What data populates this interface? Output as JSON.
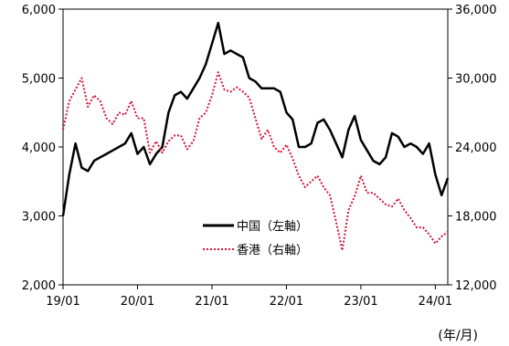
{
  "chart_data": {
    "type": "line",
    "x_unit_label": "(年/月)",
    "x_ticks": [
      "19/01",
      "20/01",
      "21/01",
      "22/01",
      "23/01",
      "24/01"
    ],
    "y_left": {
      "ticks": [
        "2,000",
        "3,000",
        "4,000",
        "5,000",
        "6,000"
      ],
      "range": [
        2000,
        6000
      ]
    },
    "y_right": {
      "ticks": [
        "12,000",
        "18,000",
        "24,000",
        "30,000",
        "36,000"
      ],
      "range": [
        12000,
        36000
      ]
    },
    "x_range": [
      "2019-01",
      "2024-03"
    ],
    "legend_position": "lower-center",
    "grid": false,
    "series": [
      {
        "name": "中国（左軸）",
        "axis": "left",
        "color": "#000000",
        "style": "solid",
        "x": [
          "2019-01",
          "2019-02",
          "2019-03",
          "2019-04",
          "2019-05",
          "2019-06",
          "2019-07",
          "2019-08",
          "2019-09",
          "2019-10",
          "2019-11",
          "2019-12",
          "2020-01",
          "2020-02",
          "2020-03",
          "2020-04",
          "2020-05",
          "2020-06",
          "2020-07",
          "2020-08",
          "2020-09",
          "2020-10",
          "2020-11",
          "2020-12",
          "2021-01",
          "2021-02",
          "2021-03",
          "2021-04",
          "2021-05",
          "2021-06",
          "2021-07",
          "2021-08",
          "2021-09",
          "2021-10",
          "2021-11",
          "2021-12",
          "2022-01",
          "2022-02",
          "2022-03",
          "2022-04",
          "2022-05",
          "2022-06",
          "2022-07",
          "2022-08",
          "2022-09",
          "2022-10",
          "2022-11",
          "2022-12",
          "2023-01",
          "2023-02",
          "2023-03",
          "2023-04",
          "2023-05",
          "2023-06",
          "2023-07",
          "2023-08",
          "2023-09",
          "2023-10",
          "2023-11",
          "2023-12",
          "2024-01",
          "2024-02",
          "2024-03"
        ],
        "values": [
          3000,
          3600,
          4050,
          3700,
          3650,
          3800,
          3850,
          3900,
          3950,
          4000,
          4050,
          4200,
          3900,
          4000,
          3750,
          3900,
          4000,
          4500,
          4750,
          4800,
          4700,
          4850,
          5000,
          5200,
          5500,
          5800,
          5350,
          5400,
          5350,
          5300,
          5000,
          4950,
          4850,
          4850,
          4850,
          4800,
          4500,
          4400,
          4000,
          4000,
          4050,
          4350,
          4400,
          4250,
          4050,
          3850,
          4250,
          4450,
          4100,
          3950,
          3800,
          3750,
          3850,
          4200,
          4150,
          4000,
          4050,
          4000,
          3900,
          4050,
          3600,
          3300,
          3550
        ]
      },
      {
        "name": "香港（右軸）",
        "axis": "right",
        "color": "#d4143a",
        "style": "dotted",
        "x": [
          "2019-01",
          "2019-02",
          "2019-03",
          "2019-04",
          "2019-05",
          "2019-06",
          "2019-07",
          "2019-08",
          "2019-09",
          "2019-10",
          "2019-11",
          "2019-12",
          "2020-01",
          "2020-02",
          "2020-03",
          "2020-04",
          "2020-05",
          "2020-06",
          "2020-07",
          "2020-08",
          "2020-09",
          "2020-10",
          "2020-11",
          "2020-12",
          "2021-01",
          "2021-02",
          "2021-03",
          "2021-04",
          "2021-05",
          "2021-06",
          "2021-07",
          "2021-08",
          "2021-09",
          "2021-10",
          "2021-11",
          "2021-12",
          "2022-01",
          "2022-02",
          "2022-03",
          "2022-04",
          "2022-05",
          "2022-06",
          "2022-07",
          "2022-08",
          "2022-09",
          "2022-10",
          "2022-11",
          "2022-12",
          "2023-01",
          "2023-02",
          "2023-03",
          "2023-04",
          "2023-05",
          "2023-06",
          "2023-07",
          "2023-08",
          "2023-09",
          "2023-10",
          "2023-11",
          "2023-12",
          "2024-01",
          "2024-02",
          "2024-03"
        ],
        "values": [
          25500,
          28000,
          29000,
          30000,
          27500,
          28500,
          28000,
          26500,
          26000,
          27000,
          26800,
          28000,
          26500,
          26500,
          23500,
          24500,
          23500,
          24500,
          25000,
          25000,
          23800,
          24500,
          26500,
          27000,
          28500,
          30500,
          29000,
          28800,
          29200,
          28800,
          28300,
          26500,
          24700,
          25500,
          24000,
          23500,
          24200,
          23000,
          21500,
          20500,
          21000,
          21500,
          20500,
          19800,
          17500,
          15000,
          18500,
          19700,
          21500,
          20000,
          20000,
          19500,
          19000,
          18800,
          19500,
          18500,
          17800,
          17000,
          17000,
          16400,
          15600,
          16200,
          16600
        ]
      }
    ]
  }
}
